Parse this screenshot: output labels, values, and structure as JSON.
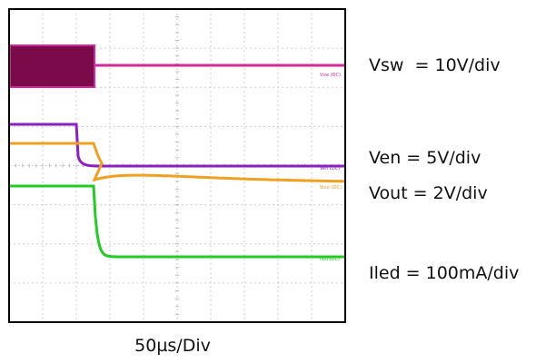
{
  "chart_data": {
    "type": "line",
    "title": "",
    "xlabel": "50µs/Div",
    "ylabel": "",
    "grid": true,
    "x_range": [
      0,
      500
    ],
    "x_unit": "µs",
    "divisions": {
      "x": 10,
      "y": 8
    },
    "series": [
      {
        "name": "Vsw",
        "scale_label": "Vsw  = 10V/div",
        "trace_tag": "Vsw (DC)",
        "color": "#d12a9e",
        "fill_color": "#7a0a4a"
      },
      {
        "name": "Ven",
        "scale_label": "Ven = 5V/div",
        "trace_tag": "Ven (DC)",
        "color": "#8b1fc2"
      },
      {
        "name": "Vout",
        "scale_label": "Vout = 2V/div",
        "trace_tag": "Vout (DC)",
        "color": "#f0a020"
      },
      {
        "name": "Iled",
        "scale_label": "Iled = 100mA/div",
        "trace_tag": "Iled (DC)",
        "color": "#22cc22"
      }
    ]
  }
}
